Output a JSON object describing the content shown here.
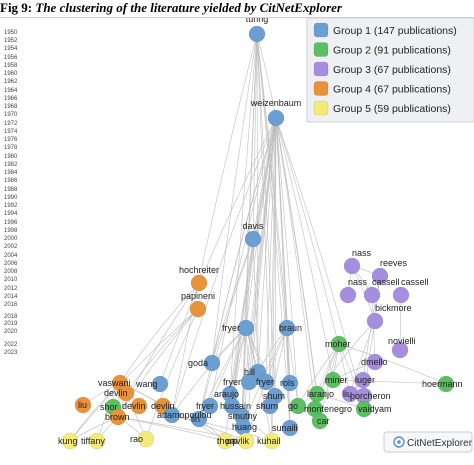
{
  "caption": {
    "label": "Fig 9:",
    "title": "The clustering of the literature yielded by CitNetExplorer"
  },
  "colors": {
    "group1": "#6b9fd4",
    "group2": "#5cbf62",
    "group3": "#a58ee0",
    "group4": "#e8923a",
    "group5": "#f2eb7a",
    "edge": "#bdbdbd"
  },
  "legend": [
    {
      "group": "group1",
      "label": "Group 1 (147 publications)"
    },
    {
      "group": "group2",
      "label": "Group 2 (91 publications)"
    },
    {
      "group": "group3",
      "label": "Group 3 (67 publications)"
    },
    {
      "group": "group4",
      "label": "Group 4 (67 publications)"
    },
    {
      "group": "group5",
      "label": "Group 5 (59 publications)"
    }
  ],
  "years": [
    "1950",
    "1952",
    "1954",
    "1956",
    "1958",
    "1960",
    "1962",
    "1964",
    "1966",
    "1968",
    "1970",
    "1972",
    "1974",
    "1976",
    "1978",
    "1980",
    "1982",
    "1984",
    "1986",
    "1988",
    "1990",
    "1992",
    "1994",
    "1996",
    "1998",
    "2000",
    "2002",
    "2004",
    "2006",
    "2008",
    "2010",
    "2012",
    "2014",
    "2016",
    "2018",
    "2019",
    "2020",
    "2022",
    "2023"
  ],
  "nodes": [
    {
      "id": "turing",
      "label": "turing",
      "year": 1950,
      "group": "group1"
    },
    {
      "id": "weizenbaum",
      "label": "weizenbaum",
      "year": 1966,
      "group": "group1"
    },
    {
      "id": "davis",
      "label": "davis",
      "year": 1989,
      "group": "group1"
    },
    {
      "id": "hochreiter",
      "label": "hochreiter",
      "year": 1997,
      "group": "group4"
    },
    {
      "id": "papineni",
      "label": "papineni",
      "year": 2002,
      "group": "group4"
    },
    {
      "id": "fryer",
      "label": "fryer",
      "year": 2006,
      "group": "group1"
    },
    {
      "id": "braun",
      "label": "braun",
      "year": 2006,
      "group": "group1"
    },
    {
      "id": "nass1",
      "label": "nass",
      "year": 1995,
      "group": "group3"
    },
    {
      "id": "reeves",
      "label": "reeves",
      "year": 1996,
      "group": "group3"
    },
    {
      "id": "nass2",
      "label": "nass",
      "year": 2000,
      "group": "group3"
    },
    {
      "id": "cassell1",
      "label": "cassell",
      "year": 2000,
      "group": "group3"
    },
    {
      "id": "cassell2",
      "label": "cassell",
      "year": 2000,
      "group": "group3"
    },
    {
      "id": "bickmore",
      "label": "bickmore",
      "year": 2005,
      "group": "group3"
    },
    {
      "id": "moher",
      "label": "moher",
      "year": 2009,
      "group": "group2"
    },
    {
      "id": "novielli",
      "label": "novielli",
      "year": 2010,
      "group": "group3"
    },
    {
      "id": "dmello",
      "label": "dmello",
      "year": 2012,
      "group": "group3"
    },
    {
      "id": "goda",
      "label": "goda",
      "year": 2014,
      "group": "group1"
    },
    {
      "id": "hill",
      "label": "hill",
      "year": 2015,
      "group": "group1"
    },
    {
      "id": "miner",
      "label": "miner",
      "year": 2016,
      "group": "group2"
    },
    {
      "id": "luger",
      "label": "luger",
      "year": 2016,
      "group": "group3"
    },
    {
      "id": "hoermann",
      "label": "hoermann",
      "year": 2017,
      "group": "group2"
    },
    {
      "id": "vaswani",
      "label": "vaswani",
      "year": 2017,
      "group": "group4"
    },
    {
      "id": "wang",
      "label": "wang",
      "year": 2017,
      "group": "group1"
    },
    {
      "id": "fryer2",
      "label": "fryer",
      "year": 2017,
      "group": "group1"
    },
    {
      "id": "fryer3",
      "label": "fryer",
      "year": 2017,
      "group": "group1"
    },
    {
      "id": "rols",
      "label": "rols",
      "year": 2017,
      "group": "group1"
    },
    {
      "id": "devlin1",
      "label": "devlin",
      "year": 2018,
      "group": "group4"
    },
    {
      "id": "shum1",
      "label": "shum",
      "year": 2018,
      "group": "group1"
    },
    {
      "id": "araujo",
      "label": "araujo",
      "year": 2018,
      "group": "group1"
    },
    {
      "id": "laranjo",
      "label": "laranjo",
      "year": 2018,
      "group": "group2"
    },
    {
      "id": "liu1",
      "label": "liu",
      "year": 2018,
      "group": "group3"
    },
    {
      "id": "porcheron",
      "label": "porcheron",
      "year": 2018,
      "group": "group3"
    },
    {
      "id": "liu2",
      "label": "liu",
      "year": 2019,
      "group": "group4"
    },
    {
      "id": "shor",
      "label": "shor",
      "year": 2019,
      "group": "group2"
    },
    {
      "id": "devlin2",
      "label": "devlin",
      "year": 2019,
      "group": "group4"
    },
    {
      "id": "devlin3",
      "label": "devlin",
      "year": 2019,
      "group": "group4"
    },
    {
      "id": "fryer4",
      "label": "fryer",
      "year": 2019,
      "group": "group1"
    },
    {
      "id": "hussain",
      "label": "hussain",
      "year": 2019,
      "group": "group1"
    },
    {
      "id": "shum2",
      "label": "shum",
      "year": 2019,
      "group": "group1"
    },
    {
      "id": "go",
      "label": "go",
      "year": 2019,
      "group": "group2"
    },
    {
      "id": "montenegro",
      "label": "montenegro",
      "year": 2019,
      "group": "group2"
    },
    {
      "id": "vaidyam",
      "label": "vaidyam",
      "year": 2019,
      "group": "group2"
    },
    {
      "id": "brown",
      "label": "brown",
      "year": 2020,
      "group": "group4"
    },
    {
      "id": "adamopoulou",
      "label": "adamopoulou",
      "year": 2020,
      "group": "group1"
    },
    {
      "id": "lin",
      "label": "lin",
      "year": 2020,
      "group": "group1"
    },
    {
      "id": "smutny",
      "label": "smutny",
      "year": 2020,
      "group": "group1"
    },
    {
      "id": "car",
      "label": "car",
      "year": 2020,
      "group": "group2"
    },
    {
      "id": "sunaili",
      "label": "sunaili",
      "year": 2021,
      "group": "group1"
    },
    {
      "id": "huang",
      "label": "huang",
      "year": 2021,
      "group": "group1"
    },
    {
      "id": "kung",
      "label": "kung",
      "year": 2023,
      "group": "group5"
    },
    {
      "id": "tiffany",
      "label": "tiffany",
      "year": 2023,
      "group": "group5"
    },
    {
      "id": "rao",
      "label": "rao",
      "year": 2023,
      "group": "group5"
    },
    {
      "id": "thorp",
      "label": "thorp",
      "year": 2023,
      "group": "group5"
    },
    {
      "id": "pavlik",
      "label": "pavlik",
      "year": 2023,
      "group": "group5"
    },
    {
      "id": "kuhail",
      "label": "kuhail",
      "year": 2023,
      "group": "group5"
    }
  ],
  "edges": [
    [
      "weizenbaum",
      "turing"
    ],
    [
      "davis",
      "turing"
    ],
    [
      "fryer",
      "turing"
    ],
    [
      "braun",
      "turing"
    ],
    [
      "goda",
      "turing"
    ],
    [
      "hill",
      "turing"
    ],
    [
      "shum1",
      "turing"
    ],
    [
      "araujo",
      "turing"
    ],
    [
      "adamopoulou",
      "turing"
    ],
    [
      "sunaili",
      "turing"
    ],
    [
      "kuhail",
      "turing"
    ],
    [
      "smutny",
      "turing"
    ],
    [
      "rols",
      "turing"
    ],
    [
      "fryer",
      "weizenbaum"
    ],
    [
      "braun",
      "weizenbaum"
    ],
    [
      "davis",
      "weizenbaum"
    ],
    [
      "goda",
      "weizenbaum"
    ],
    [
      "hill",
      "weizenbaum"
    ],
    [
      "fryer2",
      "weizenbaum"
    ],
    [
      "fryer3",
      "weizenbaum"
    ],
    [
      "rols",
      "weizenbaum"
    ],
    [
      "shum1",
      "weizenbaum"
    ],
    [
      "araujo",
      "weizenbaum"
    ],
    [
      "hussain",
      "weizenbaum"
    ],
    [
      "adamopoulou",
      "weizenbaum"
    ],
    [
      "lin",
      "weizenbaum"
    ],
    [
      "smutny",
      "weizenbaum"
    ],
    [
      "sunaili",
      "weizenbaum"
    ],
    [
      "huang",
      "weizenbaum"
    ],
    [
      "kuhail",
      "weizenbaum"
    ],
    [
      "pavlik",
      "weizenbaum"
    ],
    [
      "thorp",
      "weizenbaum"
    ],
    [
      "laranjo",
      "weizenbaum"
    ],
    [
      "go",
      "weizenbaum"
    ],
    [
      "montenegro",
      "weizenbaum"
    ],
    [
      "car",
      "weizenbaum"
    ],
    [
      "miner",
      "weizenbaum"
    ],
    [
      "liu1",
      "weizenbaum"
    ],
    [
      "shum2",
      "weizenbaum"
    ],
    [
      "wang",
      "weizenbaum"
    ],
    [
      "fryer4",
      "weizenbaum"
    ],
    [
      "vaidyam",
      "weizenbaum"
    ],
    [
      "goda",
      "davis"
    ],
    [
      "fryer",
      "davis"
    ],
    [
      "hill",
      "davis"
    ],
    [
      "hussain",
      "davis"
    ],
    [
      "lin",
      "davis"
    ],
    [
      "vaswani",
      "hochreiter"
    ],
    [
      "brown",
      "hochreiter"
    ],
    [
      "devlin1",
      "papineni"
    ],
    [
      "brown",
      "papineni"
    ],
    [
      "rao",
      "papineni"
    ],
    [
      "kung",
      "papineni"
    ],
    [
      "reeves",
      "nass1"
    ],
    [
      "nass2",
      "nass1"
    ],
    [
      "cassell1",
      "nass1"
    ],
    [
      "bickmore",
      "nass1"
    ],
    [
      "bickmore",
      "reeves"
    ],
    [
      "luger",
      "reeves"
    ],
    [
      "novielli",
      "cassell2"
    ],
    [
      "dmello",
      "cassell1"
    ],
    [
      "porcheron",
      "bickmore"
    ],
    [
      "liu1",
      "bickmore"
    ],
    [
      "laranjo",
      "bickmore"
    ],
    [
      "go",
      "moher"
    ],
    [
      "montenegro",
      "moher"
    ],
    [
      "vaidyam",
      "moher"
    ],
    [
      "car",
      "moher"
    ],
    [
      "miner",
      "moher"
    ],
    [
      "laranjo",
      "moher"
    ],
    [
      "hoermann",
      "moher"
    ],
    [
      "goda",
      "fryer"
    ],
    [
      "hill",
      "fryer"
    ],
    [
      "fryer2",
      "fryer"
    ],
    [
      "fryer3",
      "fryer"
    ],
    [
      "shum1",
      "fryer"
    ],
    [
      "araujo",
      "fryer"
    ],
    [
      "hussain",
      "fryer"
    ],
    [
      "fryer4",
      "fryer"
    ],
    [
      "adamopoulou",
      "fryer"
    ],
    [
      "smutny",
      "fryer"
    ],
    [
      "lin",
      "fryer"
    ],
    [
      "huang",
      "fryer"
    ],
    [
      "kuhail",
      "fryer"
    ],
    [
      "hill",
      "braun"
    ],
    [
      "rols",
      "braun"
    ],
    [
      "go",
      "braun"
    ],
    [
      "sunaili",
      "braun"
    ],
    [
      "huang",
      "braun"
    ],
    [
      "pavlik",
      "braun"
    ],
    [
      "shum2",
      "braun"
    ],
    [
      "devlin2",
      "vaswani"
    ],
    [
      "devlin3",
      "vaswani"
    ],
    [
      "brown",
      "vaswani"
    ],
    [
      "liu2",
      "vaswani"
    ],
    [
      "rao",
      "vaswani"
    ],
    [
      "tiffany",
      "vaswani"
    ],
    [
      "kung",
      "vaswani"
    ],
    [
      "thorp",
      "vaswani"
    ],
    [
      "brown",
      "devlin1"
    ],
    [
      "kung",
      "brown"
    ],
    [
      "tiffany",
      "brown"
    ],
    [
      "rao",
      "brown"
    ],
    [
      "pavlik",
      "brown"
    ],
    [
      "thorp",
      "brown"
    ],
    [
      "kuhail",
      "adamopoulou"
    ],
    [
      "pavlik",
      "adamopoulou"
    ],
    [
      "thorp",
      "lin"
    ],
    [
      "huang",
      "smutny"
    ],
    [
      "kuhail",
      "smutny"
    ],
    [
      "montenegro",
      "laranjo"
    ],
    [
      "vaidyam",
      "laranjo"
    ],
    [
      "car",
      "laranjo"
    ],
    [
      "go",
      "laranjo"
    ],
    [
      "liu1",
      "luger"
    ],
    [
      "porcheron",
      "luger"
    ],
    [
      "miner",
      "dmello"
    ],
    [
      "hoermann",
      "miner"
    ]
  ],
  "brand": "CitNetExplorer"
}
